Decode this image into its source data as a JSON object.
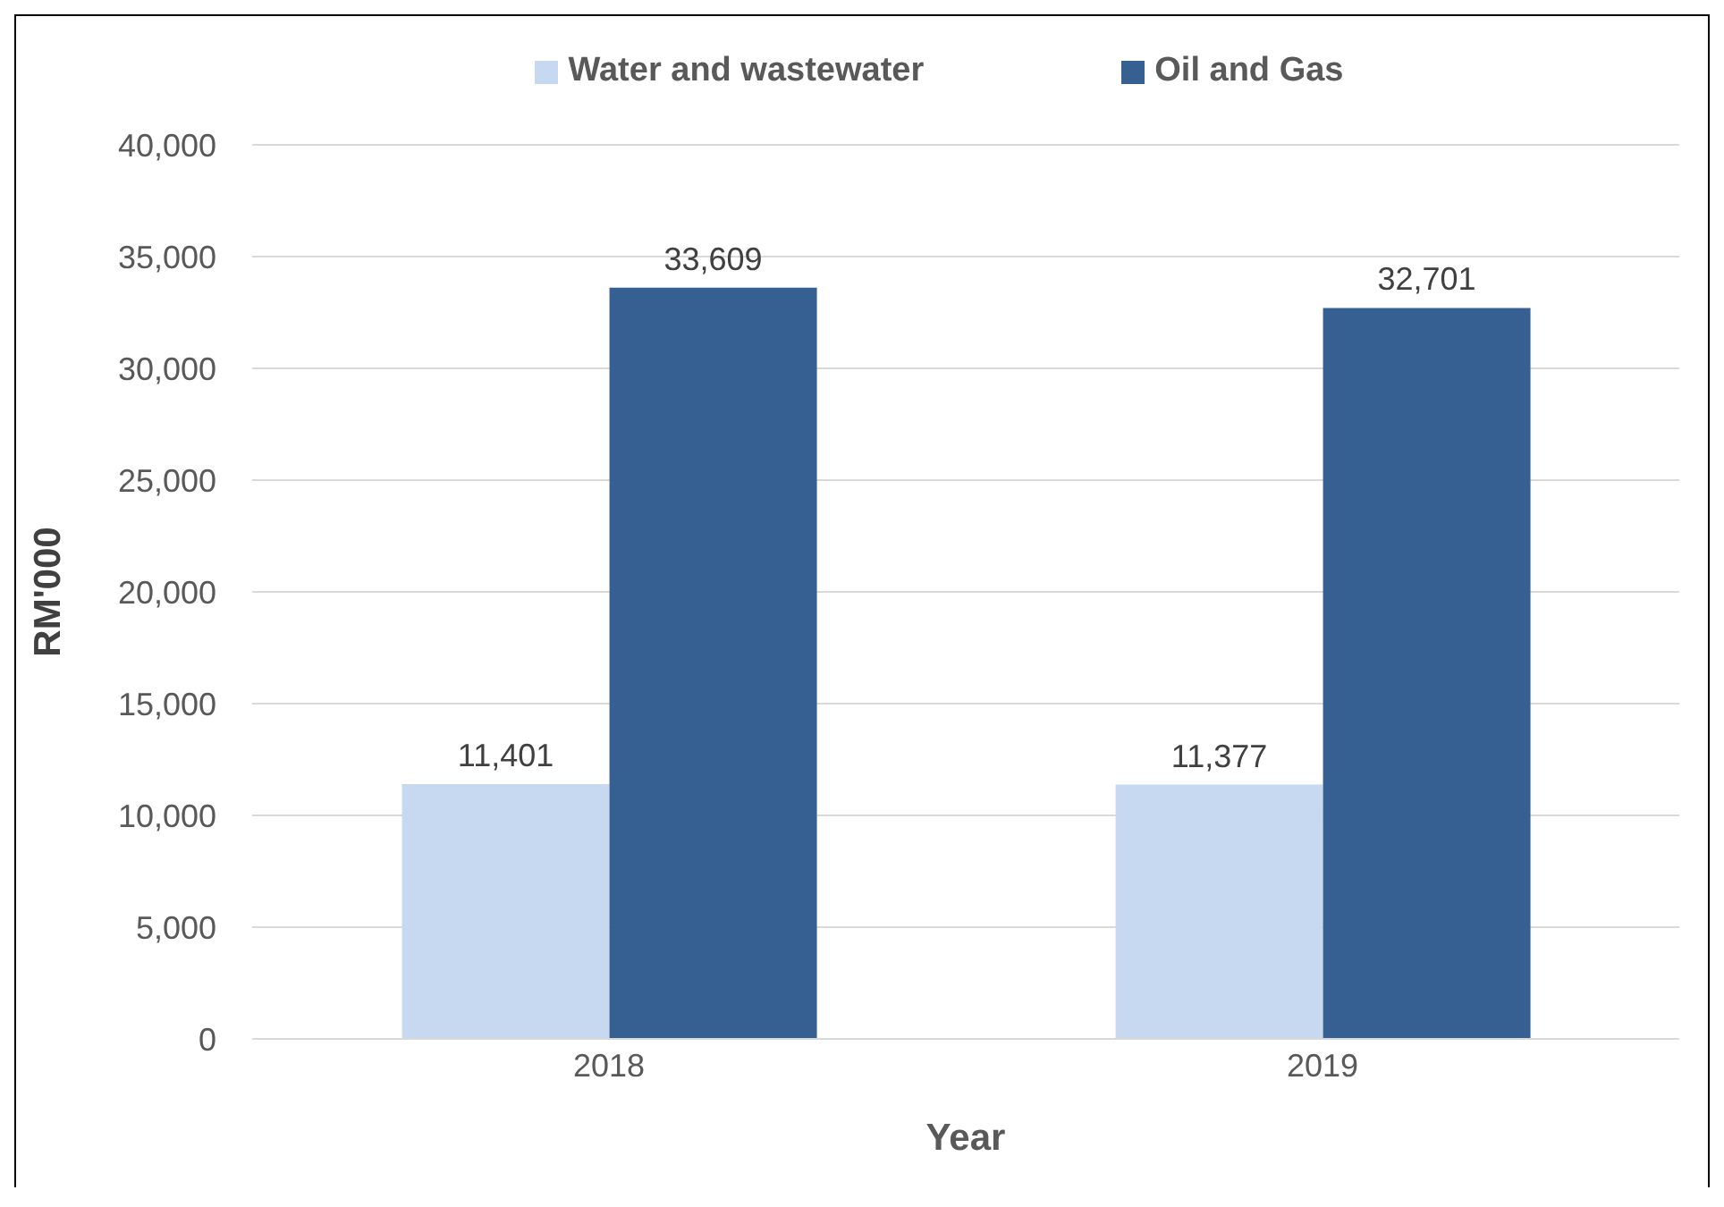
{
  "chart_data": {
    "type": "bar",
    "xlabel": "Year",
    "ylabel": "RM'000",
    "categories": [
      "2018",
      "2019"
    ],
    "series": [
      {
        "name": "Water and wastewater",
        "color": "#c6d9f1",
        "values": [
          11401,
          11377
        ],
        "value_labels": [
          "11,401",
          "11,377"
        ]
      },
      {
        "name": "Oil and Gas",
        "color": "#376092",
        "values": [
          33609,
          32701
        ],
        "value_labels": [
          "33,609",
          "32,701"
        ]
      }
    ],
    "ylim": [
      0,
      40000
    ],
    "yticks": [
      0,
      {
        "value": 5000,
        "label": "5,000"
      },
      {
        "value": 10000,
        "label": "10,000"
      },
      {
        "value": 15000,
        "label": "15,000"
      },
      {
        "value": 20000,
        "label": "20,000"
      },
      {
        "value": 25000,
        "label": "25,000"
      },
      {
        "value": 30000,
        "label": "30,000"
      },
      {
        "value": 35000,
        "label": "35,000"
      },
      {
        "value": 40000,
        "label": "40,000"
      }
    ],
    "grid": "y",
    "legend": "top"
  }
}
